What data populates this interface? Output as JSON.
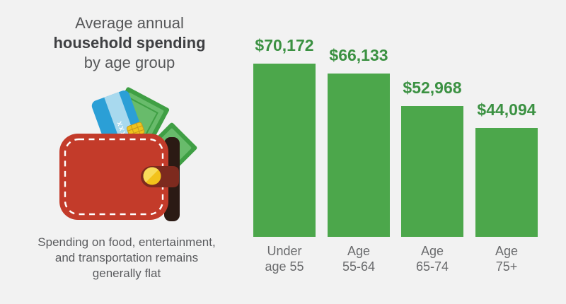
{
  "colors": {
    "background": "#f2f2f2",
    "title_regular": "#57585a",
    "title_bold": "#3f4043",
    "caption": "#5a5b5e"
  },
  "left_panel": {
    "title": {
      "line1": "Average annual",
      "line2": "household spending",
      "line3": "by age group"
    },
    "caption": {
      "line1": "Spending on food, entertainment,",
      "line2": "and transportation remains",
      "line3": "generally flat"
    }
  },
  "wallet": {
    "card_text": "XXXX XXXX",
    "colors": {
      "body": "#c33b2a",
      "edge": "#2b1a14",
      "stitch": "#ffffff",
      "strap": "#7d2a1e",
      "coin": "#f2c21b",
      "coin_highlight": "#f8dc5a",
      "card": "#2b9fd6",
      "card_stripe": "#a8d9ee",
      "chip": "#efc31c",
      "bill_outer": "#3f9f44",
      "bill_inner": "#68bb6b"
    }
  },
  "chart_data": {
    "type": "bar",
    "title": "Average annual household spending by age group",
    "xlabel": "",
    "ylabel": "",
    "categories": [
      "Under age 55",
      "Age 55-64",
      "Age 65-74",
      "Age 75+"
    ],
    "category_lines": [
      [
        "Under",
        "age 55"
      ],
      [
        "Age",
        "55-64"
      ],
      [
        "Age",
        "65-74"
      ],
      [
        "Age",
        "75+"
      ]
    ],
    "values": [
      70172,
      66133,
      52968,
      44094
    ],
    "value_labels": [
      "$70,172",
      "$66,133",
      "$52,968",
      "$44,094"
    ],
    "ylim": [
      0,
      70172
    ],
    "grid": false,
    "legend": false,
    "bar_color": "#4ca74b",
    "value_label_color": "#3b9142",
    "category_label_color": "#6a6b6d"
  }
}
